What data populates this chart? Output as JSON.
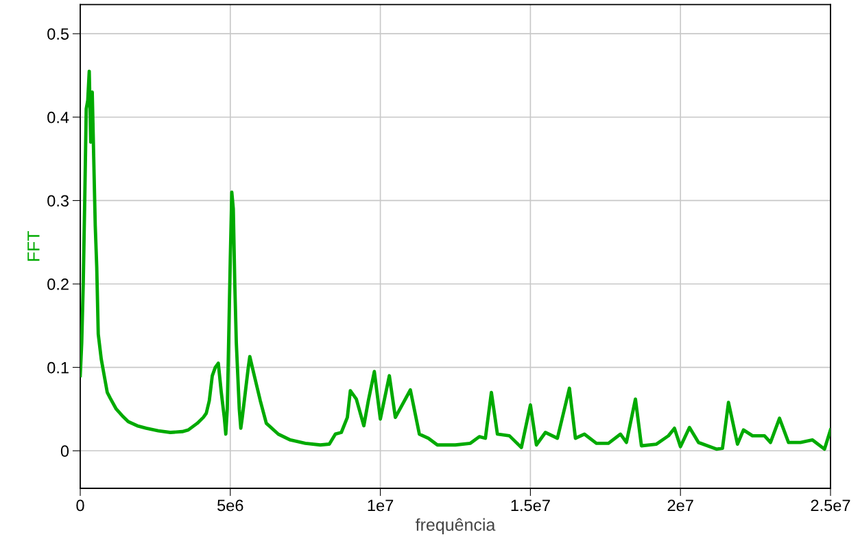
{
  "chart_data": {
    "type": "line",
    "xlabel": "frequência",
    "ylabel": "FFT",
    "xlim": [
      0,
      25000000
    ],
    "ylim": [
      -0.045,
      0.535
    ],
    "xticks": [
      {
        "value": 0,
        "label": "0"
      },
      {
        "value": 5000000,
        "label": "5e6"
      },
      {
        "value": 10000000,
        "label": "1e7"
      },
      {
        "value": 15000000,
        "label": "1.5e7"
      },
      {
        "value": 20000000,
        "label": "2e7"
      },
      {
        "value": 25000000,
        "label": "2.5e7"
      }
    ],
    "yticks": [
      0,
      0.1,
      0.2,
      0.3,
      0.4,
      0.5
    ],
    "grid": true,
    "marker": "none",
    "line_style": "solid",
    "series": [
      {
        "color": "#00aa00",
        "x": [
          0,
          50000,
          100000,
          150000,
          200000,
          250000,
          300000,
          350000,
          400000,
          450000,
          500000,
          550000,
          600000,
          700000,
          800000,
          900000,
          1000000,
          1200000,
          1400000,
          1600000,
          1900000,
          2200000,
          2600000,
          3000000,
          3400000,
          3600000,
          3900000,
          4100000,
          4200000,
          4300000,
          4400000,
          4500000,
          4600000,
          4700000,
          4800000,
          4850000,
          4900000,
          4950000,
          5000000,
          5050000,
          5100000,
          5150000,
          5200000,
          5300000,
          5350000,
          5400000,
          5500000,
          5600000,
          5650000,
          5800000,
          6000000,
          6200000,
          6600000,
          7000000,
          7500000,
          8000000,
          8300000,
          8500000,
          8700000,
          8900000,
          9000000,
          9200000,
          9450000,
          9600000,
          9800000,
          10000000,
          10300000,
          10500000,
          11000000,
          11300000,
          11600000,
          11900000,
          12500000,
          13000000,
          13300000,
          13500000,
          13700000,
          13900000,
          14300000,
          14700000,
          15000000,
          15200000,
          15500000,
          15900000,
          16300000,
          16500000,
          16800000,
          17200000,
          17600000,
          18000000,
          18200000,
          18500000,
          18700000,
          19200000,
          19600000,
          19800000,
          20000000,
          20300000,
          20600000,
          21200000,
          21400000,
          21600000,
          21900000,
          22100000,
          22400000,
          22800000,
          23000000,
          23300000,
          23600000,
          24000000,
          24400000,
          24800000,
          25000000
        ],
        "values": [
          0.09,
          0.13,
          0.2,
          0.3,
          0.41,
          0.42,
          0.455,
          0.37,
          0.43,
          0.35,
          0.27,
          0.22,
          0.14,
          0.11,
          0.09,
          0.07,
          0.063,
          0.05,
          0.042,
          0.035,
          0.03,
          0.027,
          0.024,
          0.022,
          0.023,
          0.025,
          0.033,
          0.04,
          0.045,
          0.06,
          0.09,
          0.1,
          0.105,
          0.07,
          0.04,
          0.02,
          0.05,
          0.14,
          0.23,
          0.31,
          0.29,
          0.2,
          0.13,
          0.05,
          0.027,
          0.04,
          0.07,
          0.1,
          0.113,
          0.09,
          0.06,
          0.033,
          0.02,
          0.013,
          0.009,
          0.007,
          0.008,
          0.02,
          0.022,
          0.04,
          0.072,
          0.062,
          0.03,
          0.06,
          0.095,
          0.038,
          0.09,
          0.04,
          0.073,
          0.02,
          0.015,
          0.007,
          0.007,
          0.009,
          0.017,
          0.015,
          0.07,
          0.02,
          0.018,
          0.004,
          0.055,
          0.007,
          0.022,
          0.015,
          0.075,
          0.015,
          0.02,
          0.009,
          0.009,
          0.02,
          0.01,
          0.062,
          0.006,
          0.008,
          0.018,
          0.027,
          0.005,
          0.028,
          0.01,
          0.002,
          0.003,
          0.058,
          0.008,
          0.025,
          0.018,
          0.018,
          0.01,
          0.039,
          0.01,
          0.01,
          0.013,
          0.002,
          0.025
        ]
      }
    ]
  }
}
